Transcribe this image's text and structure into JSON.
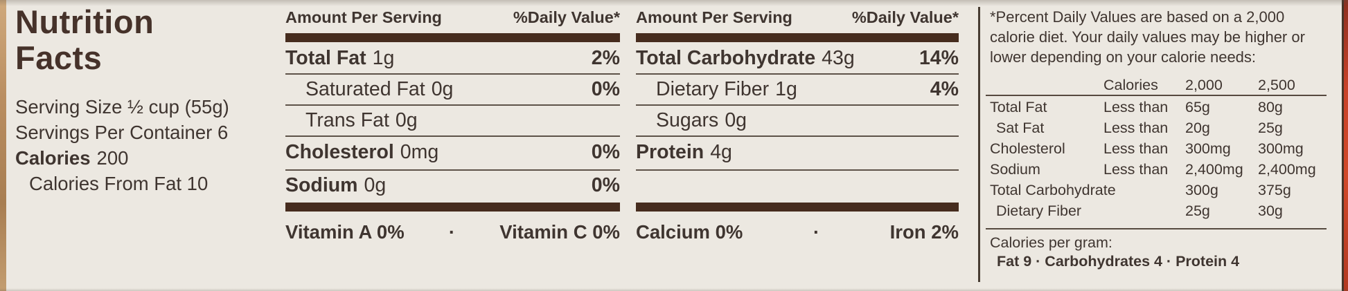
{
  "label": {
    "title_line1": "Nutrition",
    "title_line2": "Facts",
    "serving_size": "Serving Size ½ cup (55g)",
    "servings_per_container": "Servings Per Container 6",
    "calories_label": "Calories",
    "calories_value": "200",
    "calories_from_fat": "Calories From Fat 10"
  },
  "col1": {
    "header_left": "Amount Per Serving",
    "header_right": "%Daily Value*",
    "rows": [
      {
        "name": "Total Fat",
        "amount": "1g",
        "dv": "2%"
      },
      {
        "name": "Saturated Fat",
        "amount": "0g",
        "dv": "0%"
      },
      {
        "name": "Trans Fat",
        "amount": "0g",
        "dv": ""
      },
      {
        "name": "Cholesterol",
        "amount": "0mg",
        "dv": "0%"
      },
      {
        "name": "Sodium",
        "amount": "0g",
        "dv": "0%"
      }
    ],
    "micronutrients": {
      "left": "Vitamin A 0%",
      "separator": "·",
      "right": "Vitamin C 0%"
    }
  },
  "col2": {
    "header_left": "Amount Per Serving",
    "header_right": "%Daily Value*",
    "rows": [
      {
        "name": "Total Carbohydrate",
        "amount": "43g",
        "dv": "14%"
      },
      {
        "name": "Dietary Fiber",
        "amount": "1g",
        "dv": "4%"
      },
      {
        "name": "Sugars",
        "amount": "0g",
        "dv": ""
      },
      {
        "name": "Protein",
        "amount": "4g",
        "dv": ""
      }
    ],
    "micronutrients": {
      "left": "Calcium 0%",
      "separator": "·",
      "right": "Iron 2%"
    }
  },
  "footnote": {
    "line1": "*Percent Daily Values are based on a 2,000",
    "line2": "calorie diet. Your daily values may be higher or",
    "line3": "lower depending on your calorie needs:",
    "table": {
      "header": {
        "calories": "Calories",
        "c2000": "2,000",
        "c2500": "2,500"
      },
      "rows": [
        {
          "name": "Total Fat",
          "qualifier": "Less than",
          "v2000": "65g",
          "v2500": "80g"
        },
        {
          "name": "Sat Fat",
          "qualifier": "Less than",
          "v2000": "20g",
          "v2500": "25g"
        },
        {
          "name": "Cholesterol",
          "qualifier": "Less than",
          "v2000": "300mg",
          "v2500": "300mg"
        },
        {
          "name": "Sodium",
          "qualifier": "Less than",
          "v2000": "2,400mg",
          "v2500": "2,400mg"
        },
        {
          "name": "Total Carbohydrate",
          "qualifier": "",
          "v2000": "300g",
          "v2500": "375g"
        },
        {
          "name": "Dietary Fiber",
          "qualifier": "",
          "v2000": "25g",
          "v2500": "30g"
        }
      ]
    },
    "calories_per_gram_label": "Calories per gram:",
    "calories_per_gram_values": "Fat 9 · Carbohydrates 4 · Protein 4"
  },
  "colors": {
    "background": "#ece8e1",
    "text": "#3f3530",
    "title": "#46322a",
    "thick_bar": "#462c1e",
    "hairline": "#5d5248",
    "package_edge_left_tan": "#b98d60",
    "package_edge_right_red": "#d14a2a"
  }
}
